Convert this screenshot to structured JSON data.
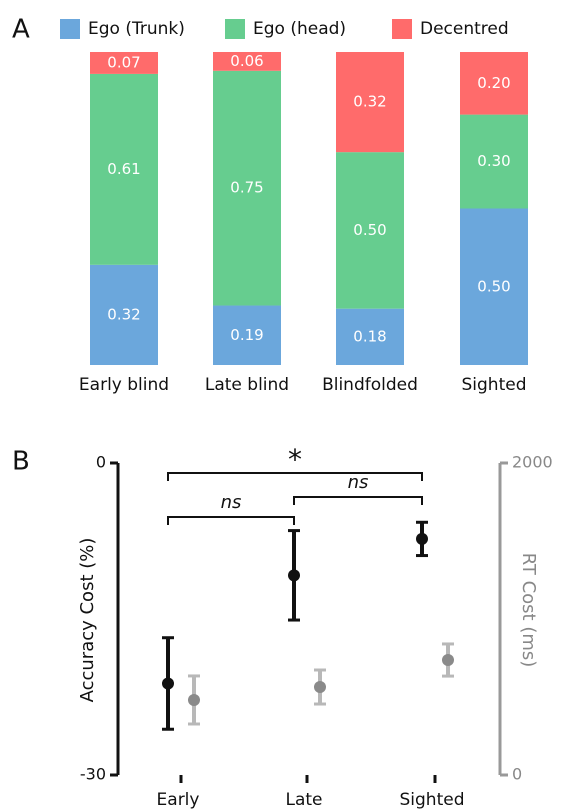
{
  "chart_data": [
    {
      "type": "bar",
      "stacked": true,
      "panel_label": "A",
      "categories": [
        "Early blind",
        "Late blind",
        "Blindfolded",
        "Sighted"
      ],
      "series": [
        {
          "name": "Ego (Trunk)",
          "color": "#6ba7dc",
          "values": [
            0.32,
            0.19,
            0.18,
            0.5
          ],
          "value_labels": [
            "0.32",
            "0.19",
            "0.18",
            "0.50"
          ]
        },
        {
          "name": "Ego (head)",
          "color": "#66cd8f",
          "values": [
            0.61,
            0.75,
            0.5,
            0.3
          ],
          "value_labels": [
            "0.61",
            "0.75",
            "0.50",
            "0.30"
          ]
        },
        {
          "name": "Decentred",
          "color": "#ff6b6b",
          "values": [
            0.07,
            0.06,
            0.32,
            0.2
          ],
          "value_labels": [
            "0.07",
            "0.06",
            "0.32",
            "0.20"
          ]
        }
      ],
      "legend": "top"
    },
    {
      "type": "errorbar",
      "panel_label": "B",
      "categories": [
        "Early",
        "Late",
        "Sighted"
      ],
      "ylabel": "Accuracy Cost (%)",
      "ylim": [
        -30,
        0
      ],
      "yticks": [
        -30,
        0
      ],
      "y2label": "RT Cost (ms)",
      "y2lim": [
        0,
        2000
      ],
      "y2ticks": [
        0,
        2000
      ],
      "series": [
        {
          "color": "#111111",
          "values": [
            -21.2,
            -10.8,
            -7.3
          ],
          "errors": [
            4.4,
            4.3,
            1.6
          ]
        },
        {
          "color": "#8a8a8a",
          "cap_color": "#b8b8b8",
          "axis": "y2",
          "values": [
            481,
            564,
            737
          ],
          "errors": [
            154,
            109,
            103
          ]
        }
      ],
      "annotations": [
        {
          "text": "*",
          "between": [
            "Early",
            "Sighted"
          ]
        },
        {
          "text": "ns",
          "between": [
            "Early",
            "Late"
          ]
        },
        {
          "text": "ns",
          "between": [
            "Late",
            "Sighted"
          ]
        }
      ]
    }
  ]
}
